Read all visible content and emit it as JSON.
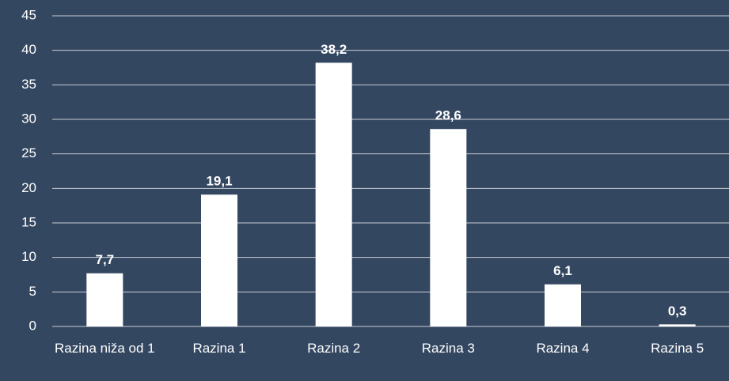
{
  "chart_data": {
    "type": "bar",
    "categories": [
      "Razina niža od 1",
      "Razina 1",
      "Razina 2",
      "Razina 3",
      "Razina 4",
      "Razina 5"
    ],
    "values": [
      7.7,
      19.1,
      38.2,
      28.6,
      6.1,
      0.3
    ],
    "value_labels": [
      "7,7",
      "19,1",
      "38,2",
      "28,6",
      "6,1",
      "0,3"
    ],
    "color": "#ffffff",
    "ylim": [
      0,
      45
    ],
    "yticks": [
      0,
      5,
      10,
      15,
      20,
      25,
      30,
      35,
      40,
      45
    ],
    "grid": true
  }
}
